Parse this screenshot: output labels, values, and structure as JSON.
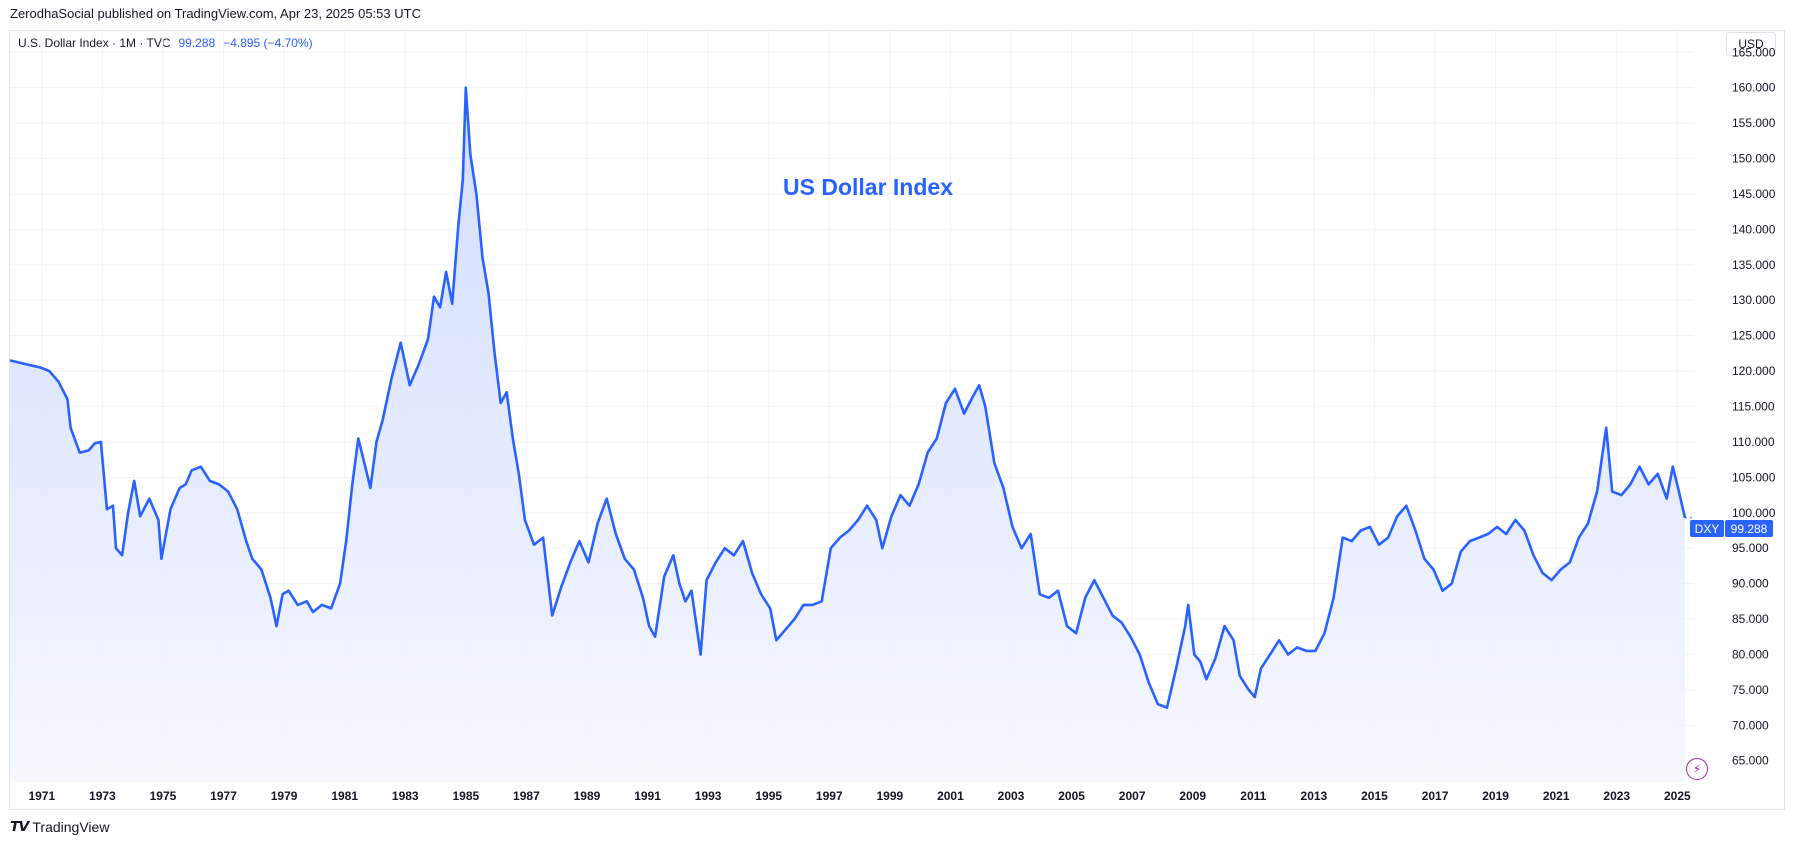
{
  "header": {
    "published": "ZerodhaSocial published on TradingView.com, Apr 23, 2025 05:53 UTC"
  },
  "legend": {
    "symbol": "U.S. Dollar Index · 1M · TVC",
    "value": "99.288",
    "change": "−4.895 (−4.70%)"
  },
  "toolbar": {
    "currency": "USD"
  },
  "footer": {
    "brand": "TradingView",
    "logo_icon": "tradingview-logo-icon"
  },
  "colors": {
    "line": "#2962ff",
    "fill_top": "#cdd9ff",
    "fill_bottom": "#f5f7ff",
    "grid": "#f0f3fa",
    "axis_text": "#131722"
  },
  "chart_data": {
    "type": "area",
    "title": "US Dollar Index",
    "xlabel": "",
    "ylabel": "",
    "ylim": [
      62,
      168
    ],
    "xlim": [
      1970.0,
      2025.6
    ],
    "grid": true,
    "y_ticks": [
      "165.000",
      "160.000",
      "155.000",
      "150.000",
      "145.000",
      "140.000",
      "135.000",
      "130.000",
      "125.000",
      "120.000",
      "115.000",
      "110.000",
      "105.000",
      "100.000",
      "95.000",
      "90.000",
      "85.000",
      "80.000",
      "75.000",
      "70.000",
      "65.000"
    ],
    "x_ticks": [
      "1971",
      "1973",
      "1975",
      "1977",
      "1979",
      "1981",
      "1983",
      "1985",
      "1987",
      "1989",
      "1991",
      "1993",
      "1995",
      "1997",
      "1999",
      "2001",
      "2003",
      "2005",
      "2007",
      "2009",
      "2011",
      "2013",
      "2015",
      "2017",
      "2019",
      "2021",
      "2023",
      "2025"
    ],
    "last_label": {
      "name": "DXY",
      "value": "99.288"
    },
    "series": [
      {
        "x": [
          1970.0,
          1970.5,
          1971.0,
          1971.3,
          1971.6,
          1971.9,
          1972.0,
          1972.3,
          1972.6,
          1972.8,
          1973.0,
          1973.2,
          1973.4,
          1973.5,
          1973.7,
          1973.9,
          1974.1,
          1974.3,
          1974.6,
          1974.9,
          1975.0,
          1975.3,
          1975.6,
          1975.8,
          1976.0,
          1976.3,
          1976.6,
          1976.9,
          1977.2,
          1977.5,
          1977.8,
          1978.0,
          1978.3,
          1978.6,
          1978.8,
          1979.0,
          1979.2,
          1979.5,
          1979.8,
          1980.0,
          1980.3,
          1980.6,
          1980.9,
          1981.1,
          1981.3,
          1981.5,
          1981.7,
          1981.9,
          1982.1,
          1982.3,
          1982.6,
          1982.9,
          1983.2,
          1983.5,
          1983.8,
          1984.0,
          1984.2,
          1984.4,
          1984.6,
          1984.8,
          1984.95,
          1985.05,
          1985.2,
          1985.4,
          1985.6,
          1985.8,
          1986.0,
          1986.2,
          1986.4,
          1986.6,
          1986.8,
          1987.0,
          1987.3,
          1987.6,
          1987.9,
          1988.2,
          1988.5,
          1988.8,
          1989.1,
          1989.4,
          1989.7,
          1990.0,
          1990.3,
          1990.6,
          1990.9,
          1991.1,
          1991.3,
          1991.6,
          1991.9,
          1992.1,
          1992.3,
          1992.5,
          1992.8,
          1993.0,
          1993.3,
          1993.6,
          1993.9,
          1994.2,
          1994.5,
          1994.8,
          1995.1,
          1995.3,
          1995.6,
          1995.9,
          1996.2,
          1996.5,
          1996.8,
          1997.1,
          1997.4,
          1997.7,
          1998.0,
          1998.3,
          1998.6,
          1998.8,
          1999.1,
          1999.4,
          1999.7,
          2000.0,
          2000.3,
          2000.6,
          2000.9,
          2001.2,
          2001.5,
          2001.8,
          2002.0,
          2002.2,
          2002.5,
          2002.8,
          2003.1,
          2003.4,
          2003.7,
          2004.0,
          2004.3,
          2004.6,
          2004.9,
          2005.2,
          2005.5,
          2005.8,
          2006.1,
          2006.4,
          2006.7,
          2007.0,
          2007.3,
          2007.6,
          2007.9,
          2008.2,
          2008.5,
          2008.8,
          2008.9,
          2009.1,
          2009.3,
          2009.5,
          2009.8,
          2010.1,
          2010.4,
          2010.6,
          2010.9,
          2011.1,
          2011.3,
          2011.6,
          2011.9,
          2012.2,
          2012.5,
          2012.8,
          2013.1,
          2013.4,
          2013.7,
          2014.0,
          2014.3,
          2014.6,
          2014.9,
          2015.2,
          2015.5,
          2015.8,
          2016.1,
          2016.4,
          2016.7,
          2017.0,
          2017.3,
          2017.6,
          2017.9,
          2018.2,
          2018.5,
          2018.8,
          2019.1,
          2019.4,
          2019.7,
          2020.0,
          2020.3,
          2020.6,
          2020.9,
          2021.2,
          2021.5,
          2021.8,
          2022.1,
          2022.4,
          2022.7,
          2022.9,
          2023.2,
          2023.5,
          2023.8,
          2024.1,
          2024.4,
          2024.7,
          2024.9,
          2025.1,
          2025.3
        ],
        "values": [
          121.5,
          121.0,
          120.5,
          120.0,
          118.5,
          116.0,
          112.0,
          108.5,
          108.8,
          109.8,
          110.0,
          100.5,
          101.0,
          95.0,
          94.0,
          100.0,
          104.5,
          99.5,
          102.0,
          99.0,
          93.5,
          100.5,
          103.5,
          104.0,
          106.0,
          106.5,
          104.5,
          104.0,
          103.0,
          100.5,
          96.0,
          93.5,
          92.0,
          88.0,
          84.0,
          88.5,
          89.0,
          87.0,
          87.5,
          86.0,
          87.0,
          86.5,
          90.0,
          96.0,
          104.0,
          110.5,
          107.0,
          103.5,
          110.0,
          113.0,
          119.0,
          124.0,
          118.0,
          121.0,
          124.5,
          130.5,
          129.0,
          134.0,
          129.5,
          140.5,
          147.0,
          160.0,
          150.5,
          145.0,
          136.0,
          131.0,
          122.5,
          115.5,
          117.0,
          110.5,
          105.5,
          99.0,
          95.5,
          96.5,
          85.5,
          89.5,
          93.0,
          96.0,
          93.0,
          98.5,
          102.0,
          97.0,
          93.5,
          92.0,
          88.0,
          84.0,
          82.5,
          91.0,
          94.0,
          90.0,
          87.5,
          89.0,
          80.0,
          90.5,
          93.0,
          95.0,
          94.0,
          96.0,
          91.5,
          88.5,
          86.5,
          82.0,
          83.5,
          85.0,
          87.0,
          87.0,
          87.5,
          95.0,
          96.5,
          97.5,
          99.0,
          101.0,
          99.0,
          95.0,
          99.5,
          102.5,
          101.0,
          104.0,
          108.5,
          110.5,
          115.5,
          117.5,
          114.0,
          116.5,
          118.0,
          115.0,
          107.0,
          103.5,
          98.0,
          95.0,
          97.0,
          88.5,
          88.0,
          89.0,
          84.0,
          83.0,
          88.0,
          90.5,
          88.0,
          85.5,
          84.5,
          82.5,
          80.0,
          76.0,
          73.0,
          72.5,
          78.0,
          84.0,
          87.0,
          80.0,
          79.0,
          76.5,
          79.5,
          84.0,
          82.0,
          77.0,
          75.0,
          74.0,
          78.0,
          80.0,
          82.0,
          80.0,
          81.0,
          80.5,
          80.5,
          83.0,
          88.0,
          96.5,
          96.0,
          97.5,
          98.0,
          95.5,
          96.5,
          99.5,
          101.0,
          97.5,
          93.5,
          92.0,
          89.0,
          90.0,
          94.5,
          96.0,
          96.5,
          97.0,
          98.0,
          97.0,
          99.0,
          97.5,
          94.0,
          91.5,
          90.5,
          92.0,
          93.0,
          96.5,
          98.5,
          103.0,
          112.0,
          103.0,
          102.5,
          104.0,
          106.5,
          104.0,
          105.5,
          102.0,
          106.5,
          103.0,
          99.3
        ]
      }
    ]
  }
}
